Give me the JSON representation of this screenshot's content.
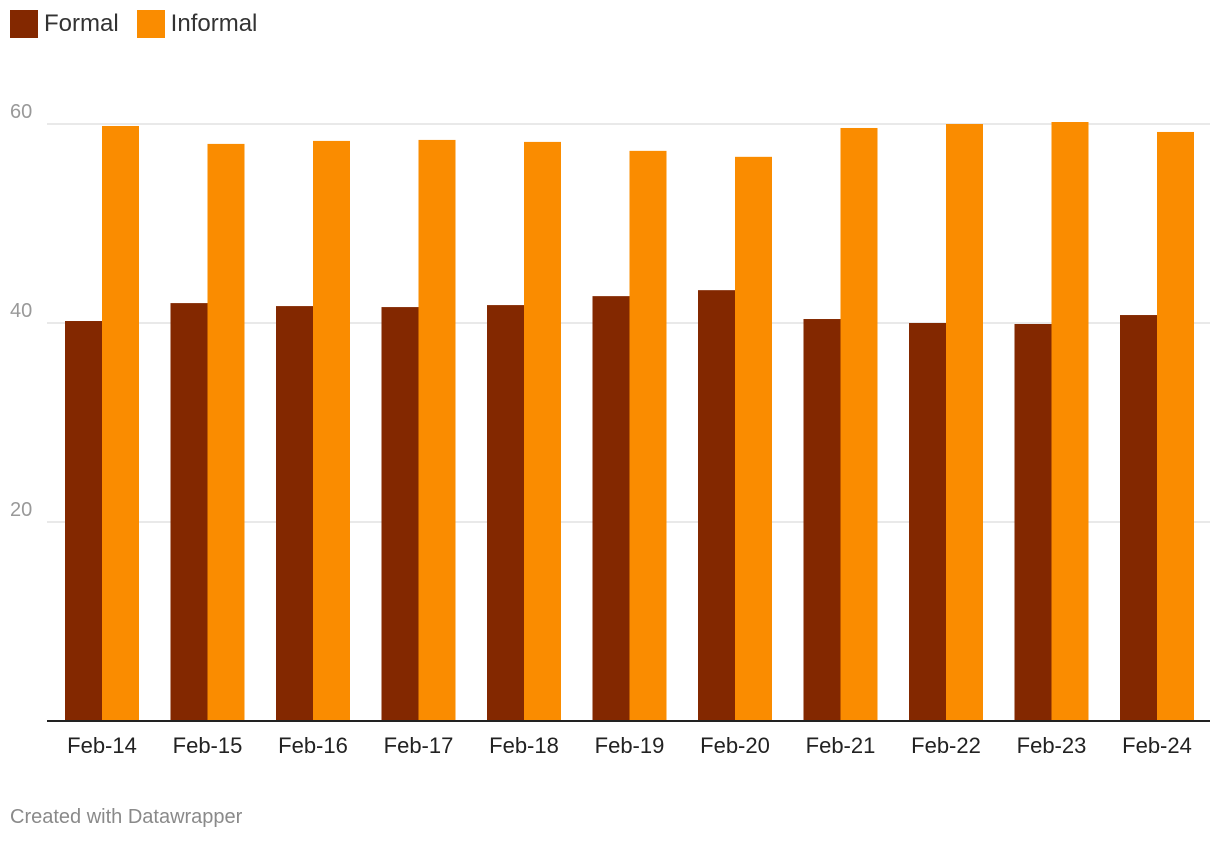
{
  "chart_data": {
    "type": "bar",
    "categories": [
      "Feb-14",
      "Feb-15",
      "Feb-16",
      "Feb-17",
      "Feb-18",
      "Feb-19",
      "Feb-20",
      "Feb-21",
      "Feb-22",
      "Feb-23",
      "Feb-24"
    ],
    "series": [
      {
        "name": "Formal",
        "color": "#832800",
        "values": [
          40.2,
          42.0,
          41.7,
          41.6,
          41.8,
          42.7,
          43.3,
          40.4,
          40.0,
          39.9,
          40.8
        ]
      },
      {
        "name": "Informal",
        "color": "#fa8c00",
        "values": [
          59.8,
          58.0,
          58.3,
          58.4,
          58.2,
          57.3,
          56.7,
          59.6,
          60.0,
          60.2,
          59.2
        ]
      }
    ],
    "yticks": [
      20,
      40,
      60
    ],
    "ylim": [
      0,
      62
    ],
    "grid": true,
    "legend_position": "top-left"
  },
  "footer": {
    "credit": "Created with Datawrapper"
  }
}
